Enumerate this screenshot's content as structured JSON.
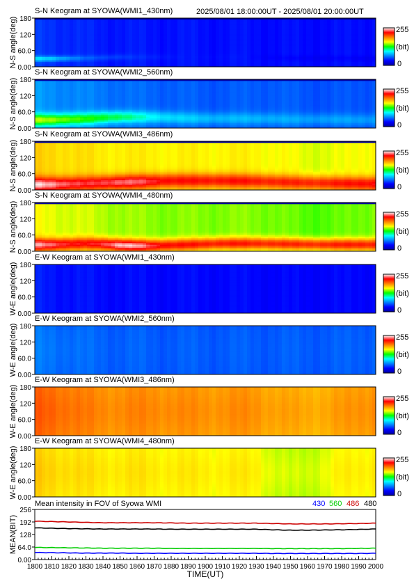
{
  "header": {
    "time_range": "2025/08/01 18:00:00UT - 2025/08/01 20:00:00UT"
  },
  "colorbar": {
    "max_label": "255",
    "unit_label": "(bit)",
    "min_label": "0",
    "stops": [
      "#0000a0",
      "#0000ff",
      "#0080ff",
      "#00ffff",
      "#00ff00",
      "#ffff00",
      "#ff8000",
      "#ff0000",
      "#ffffff"
    ]
  },
  "y_ticks": [
    "180",
    "120",
    "60.0",
    "0.00"
  ],
  "chart_data": [
    {
      "type": "heatmap",
      "title": "S-N Keogram at SYOWA(WMI1_430nm)",
      "ylabel": "N-S angle(deg)",
      "ylim": [
        0,
        180
      ],
      "xlim": [
        1800,
        2000
      ],
      "value_range": [
        0,
        255
      ],
      "x": [
        1800,
        1810,
        1820,
        1830,
        1840,
        1850,
        1860,
        1870,
        1880,
        1890,
        1900,
        1910,
        1920,
        1930,
        1940,
        1950,
        1960,
        1970,
        1980,
        1990,
        2000
      ],
      "angles": [
        0,
        15,
        30,
        45,
        60,
        75,
        90,
        105,
        120,
        135,
        150,
        165,
        180
      ],
      "background_trend": [
        45,
        44,
        42,
        40,
        38,
        38,
        37,
        36,
        36,
        36,
        35,
        35,
        35,
        35,
        34,
        34,
        34,
        34,
        34,
        35,
        35
      ],
      "band": {
        "center_deg": [
          30,
          30,
          31,
          32,
          34,
          36,
          36,
          36,
          36,
          36,
          36,
          36,
          36,
          35,
          34,
          32,
          32,
          32,
          32,
          31,
          31
        ],
        "peak": [
          90,
          85,
          70,
          55,
          50,
          48,
          42,
          40,
          38,
          36,
          36,
          36,
          36,
          34,
          32,
          30,
          30,
          30,
          30,
          30,
          30
        ],
        "width_deg": 10
      },
      "top_dark_deg": 4
    },
    {
      "type": "heatmap",
      "title": "S-N Keogram at SYOWA(WMI2_560nm)",
      "ylabel": "N-S angle(deg)",
      "ylim": [
        0,
        180
      ],
      "xlim": [
        1800,
        2000
      ],
      "value_range": [
        0,
        255
      ],
      "x": [
        1800,
        1810,
        1820,
        1830,
        1840,
        1850,
        1860,
        1870,
        1880,
        1890,
        1900,
        1910,
        1920,
        1930,
        1940,
        1950,
        1960,
        1970,
        1980,
        1990,
        2000
      ],
      "angles": [
        0,
        15,
        30,
        45,
        60,
        75,
        90,
        105,
        120,
        135,
        150,
        165,
        180
      ],
      "background_trend": [
        70,
        68,
        66,
        64,
        62,
        60,
        58,
        57,
        56,
        55,
        54,
        54,
        54,
        55,
        55,
        54,
        53,
        52,
        52,
        53,
        54
      ],
      "band": {
        "center_deg": [
          30,
          30,
          32,
          34,
          38,
          40,
          40,
          40,
          38,
          36,
          35,
          35,
          35,
          34,
          34,
          32,
          32,
          32,
          31,
          30,
          30
        ],
        "peak": [
          150,
          148,
          140,
          130,
          125,
          118,
          105,
          95,
          88,
          84,
          80,
          78,
          78,
          78,
          76,
          74,
          72,
          72,
          72,
          72,
          72
        ],
        "width_deg": 22
      },
      "top_dark_deg": 4
    },
    {
      "type": "heatmap",
      "title": "S-N Keogram at SYOWA(WMI3_486nm)",
      "ylabel": "N-S angle(deg)",
      "ylim": [
        0,
        180
      ],
      "xlim": [
        1800,
        2000
      ],
      "value_range": [
        0,
        255
      ],
      "x": [
        1800,
        1810,
        1820,
        1830,
        1840,
        1850,
        1860,
        1870,
        1880,
        1890,
        1900,
        1910,
        1920,
        1930,
        1940,
        1950,
        1960,
        1970,
        1980,
        1990,
        2000
      ],
      "angles": [
        0,
        15,
        30,
        45,
        60,
        75,
        90,
        105,
        120,
        135,
        150,
        165,
        180
      ],
      "background_trend": [
        170,
        170,
        168,
        166,
        164,
        164,
        163,
        163,
        162,
        162,
        162,
        162,
        162,
        162,
        160,
        158,
        156,
        156,
        156,
        160,
        162
      ],
      "band": {
        "center_deg": [
          20,
          20,
          22,
          24,
          26,
          28,
          30,
          32,
          34,
          34,
          34,
          34,
          33,
          32,
          30,
          28,
          26,
          25,
          24,
          23,
          22
        ],
        "peak": [
          250,
          245,
          235,
          228,
          232,
          238,
          235,
          228,
          222,
          220,
          220,
          220,
          220,
          218,
          216,
          215,
          215,
          216,
          218,
          222,
          225
        ],
        "width_deg": 26
      },
      "top_dark_deg": 4
    },
    {
      "type": "heatmap",
      "title": "S-N Keogram at SYOWA(WMI4_480nm)",
      "ylabel": "N-S angle(deg)",
      "ylim": [
        0,
        180
      ],
      "xlim": [
        1800,
        2000
      ],
      "value_range": [
        0,
        255
      ],
      "x": [
        1800,
        1810,
        1820,
        1830,
        1840,
        1850,
        1860,
        1870,
        1880,
        1890,
        1900,
        1910,
        1920,
        1930,
        1940,
        1950,
        1960,
        1970,
        1980,
        1990,
        2000
      ],
      "angles": [
        0,
        15,
        30,
        45,
        60,
        75,
        90,
        105,
        120,
        135,
        150,
        165,
        180
      ],
      "background_trend": [
        158,
        157,
        155,
        153,
        150,
        148,
        146,
        145,
        144,
        144,
        144,
        144,
        144,
        144,
        143,
        140,
        138,
        138,
        139,
        142,
        145
      ],
      "band": {
        "center_deg": [
          24,
          24,
          26,
          28,
          26,
          22,
          20,
          20,
          22,
          24,
          26,
          28,
          28,
          28,
          27,
          26,
          25,
          24,
          24,
          24,
          24
        ],
        "peak": [
          245,
          238,
          228,
          222,
          232,
          250,
          245,
          230,
          222,
          220,
          218,
          218,
          218,
          216,
          215,
          214,
          214,
          215,
          216,
          218,
          218
        ],
        "width_deg": 22
      },
      "top_dark_deg": 4
    },
    {
      "type": "heatmap",
      "title": "E-W Keogram at SYOWA(WMI1_430nm)",
      "ylabel": "W-E angle(deg)",
      "ylim": [
        0,
        180
      ],
      "xlim": [
        1800,
        2000
      ],
      "value_range": [
        0,
        255
      ],
      "x": [
        1800,
        1810,
        1820,
        1830,
        1840,
        1850,
        1860,
        1870,
        1880,
        1890,
        1900,
        1910,
        1920,
        1930,
        1940,
        1950,
        1960,
        1970,
        1980,
        1990,
        2000
      ],
      "angles": [
        0,
        15,
        30,
        45,
        60,
        75,
        90,
        105,
        120,
        135,
        150,
        165,
        180
      ],
      "background_trend": [
        38,
        37,
        36,
        35,
        34,
        34,
        33,
        33,
        33,
        33,
        33,
        33,
        33,
        33,
        32,
        32,
        32,
        32,
        32,
        33,
        33
      ],
      "band": {
        "center_deg": [
          90,
          90,
          90,
          90,
          90,
          90,
          90,
          90,
          90,
          90,
          90,
          90,
          90,
          90,
          90,
          90,
          90,
          90,
          90,
          90,
          90
        ],
        "peak": [
          38,
          37,
          36,
          35,
          34,
          34,
          33,
          33,
          33,
          33,
          33,
          33,
          33,
          33,
          32,
          32,
          32,
          32,
          32,
          33,
          33
        ],
        "width_deg": 60
      },
      "top_dark_deg": 0
    },
    {
      "type": "heatmap",
      "title": "E-W Keogram at SYOWA(WMI2_560nm)",
      "ylabel": "W-E angle(deg)",
      "ylim": [
        0,
        180
      ],
      "xlim": [
        1800,
        2000
      ],
      "value_range": [
        0,
        255
      ],
      "x": [
        1800,
        1810,
        1820,
        1830,
        1840,
        1850,
        1860,
        1870,
        1880,
        1890,
        1900,
        1910,
        1920,
        1930,
        1940,
        1950,
        1960,
        1970,
        1980,
        1990,
        2000
      ],
      "angles": [
        0,
        15,
        30,
        45,
        60,
        75,
        90,
        105,
        120,
        135,
        150,
        165,
        180
      ],
      "background_trend": [
        60,
        60,
        58,
        57,
        56,
        55,
        55,
        54,
        54,
        54,
        54,
        54,
        54,
        54,
        54,
        54,
        54,
        54,
        54,
        55,
        56
      ],
      "band": {
        "center_deg": [
          90,
          90,
          90,
          90,
          90,
          90,
          90,
          90,
          90,
          90,
          90,
          90,
          90,
          90,
          90,
          90,
          90,
          90,
          90,
          90,
          90
        ],
        "peak": [
          62,
          62,
          60,
          58,
          57,
          56,
          56,
          55,
          55,
          55,
          55,
          55,
          55,
          55,
          55,
          55,
          55,
          55,
          55,
          56,
          57
        ],
        "width_deg": 60
      },
      "top_dark_deg": 0
    },
    {
      "type": "heatmap",
      "title": "E-W Keogram at SYOWA(WMI3_486nm)",
      "ylabel": "W-E angle(deg)",
      "ylim": [
        0,
        180
      ],
      "xlim": [
        1800,
        2000
      ],
      "value_range": [
        0,
        255
      ],
      "x": [
        1800,
        1810,
        1820,
        1830,
        1840,
        1850,
        1860,
        1870,
        1880,
        1890,
        1900,
        1910,
        1920,
        1930,
        1940,
        1950,
        1960,
        1970,
        1980,
        1990,
        2000
      ],
      "angles": [
        0,
        15,
        30,
        45,
        60,
        75,
        90,
        105,
        120,
        135,
        150,
        165,
        180
      ],
      "background_trend": [
        196,
        195,
        192,
        188,
        186,
        186,
        186,
        186,
        185,
        184,
        184,
        184,
        184,
        184,
        180,
        178,
        178,
        178,
        180,
        184,
        186
      ],
      "band": {
        "center_deg": [
          90,
          90,
          90,
          90,
          90,
          90,
          90,
          90,
          90,
          90,
          90,
          90,
          90,
          90,
          90,
          90,
          90,
          90,
          90,
          90,
          90
        ],
        "peak": [
          200,
          200,
          196,
          192,
          190,
          190,
          190,
          190,
          190,
          188,
          188,
          188,
          188,
          188,
          184,
          182,
          182,
          182,
          184,
          188,
          190
        ],
        "width_deg": 70
      },
      "top_dark_deg": 0
    },
    {
      "type": "heatmap",
      "title": "E-W Keogram at SYOWA(WMI4_480nm)",
      "ylabel": "W-E angle(deg)",
      "ylim": [
        0,
        180
      ],
      "xlim": [
        1800,
        2000
      ],
      "value_range": [
        0,
        255
      ],
      "x": [
        1800,
        1810,
        1820,
        1830,
        1840,
        1850,
        1860,
        1870,
        1880,
        1890,
        1900,
        1910,
        1920,
        1930,
        1940,
        1950,
        1960,
        1970,
        1980,
        1990,
        2000
      ],
      "angles": [
        0,
        15,
        30,
        45,
        60,
        75,
        90,
        105,
        120,
        135,
        150,
        165,
        180
      ],
      "background_trend": [
        168,
        167,
        165,
        163,
        162,
        162,
        162,
        161,
        161,
        160,
        160,
        160,
        160,
        160,
        152,
        148,
        150,
        154,
        158,
        160,
        162
      ],
      "band": {
        "center_deg": [
          90,
          90,
          90,
          90,
          90,
          90,
          90,
          90,
          90,
          90,
          90,
          90,
          90,
          90,
          90,
          90,
          90,
          90,
          90,
          90,
          90
        ],
        "peak": [
          172,
          171,
          169,
          167,
          166,
          166,
          166,
          165,
          165,
          164,
          164,
          164,
          164,
          164,
          156,
          152,
          154,
          158,
          162,
          164,
          166
        ],
        "width_deg": 70
      },
      "top_dark_deg": 0
    },
    {
      "type": "line",
      "title": "Mean intensity in FOV of Syowa WMI",
      "xlabel": "TIME(UT)",
      "ylabel": "MEAN(BIT)",
      "xlim": [
        1800,
        2000
      ],
      "ylim": [
        0,
        256
      ],
      "x_ticks": [
        "1800",
        "1810",
        "1820",
        "1830",
        "1840",
        "1850",
        "1860",
        "1870",
        "1880",
        "1890",
        "1900",
        "1910",
        "1920",
        "1930",
        "1940",
        "1950",
        "1960",
        "1970",
        "1980",
        "1990",
        "2000"
      ],
      "y_ticks": [
        "256",
        "192",
        "128",
        "64.0",
        "0.00"
      ],
      "x": [
        1800,
        1810,
        1820,
        1830,
        1840,
        1850,
        1860,
        1870,
        1880,
        1890,
        1900,
        1910,
        1920,
        1930,
        1940,
        1950,
        1960,
        1970,
        1980,
        1990,
        2000
      ],
      "series": [
        {
          "name": "430",
          "color": "#0000ff",
          "values": [
            36,
            35,
            34,
            33,
            33,
            33,
            32,
            32,
            32,
            32,
            32,
            32,
            32,
            32,
            31,
            31,
            31,
            31,
            31,
            31,
            32
          ]
        },
        {
          "name": "560",
          "color": "#00cc00",
          "values": [
            62,
            61,
            60,
            59,
            58,
            58,
            58,
            58,
            57,
            57,
            57,
            57,
            57,
            57,
            56,
            56,
            56,
            56,
            56,
            57,
            58
          ]
        },
        {
          "name": "486",
          "color": "#cc0000",
          "values": [
            196,
            194,
            192,
            190,
            188,
            188,
            188,
            188,
            187,
            186,
            186,
            186,
            186,
            186,
            184,
            182,
            182,
            182,
            183,
            184,
            186
          ]
        },
        {
          "name": "480",
          "color": "#000000",
          "values": [
            162,
            160,
            158,
            157,
            156,
            156,
            156,
            156,
            155,
            155,
            155,
            155,
            155,
            155,
            152,
            150,
            150,
            151,
            152,
            154,
            156
          ]
        }
      ]
    }
  ]
}
